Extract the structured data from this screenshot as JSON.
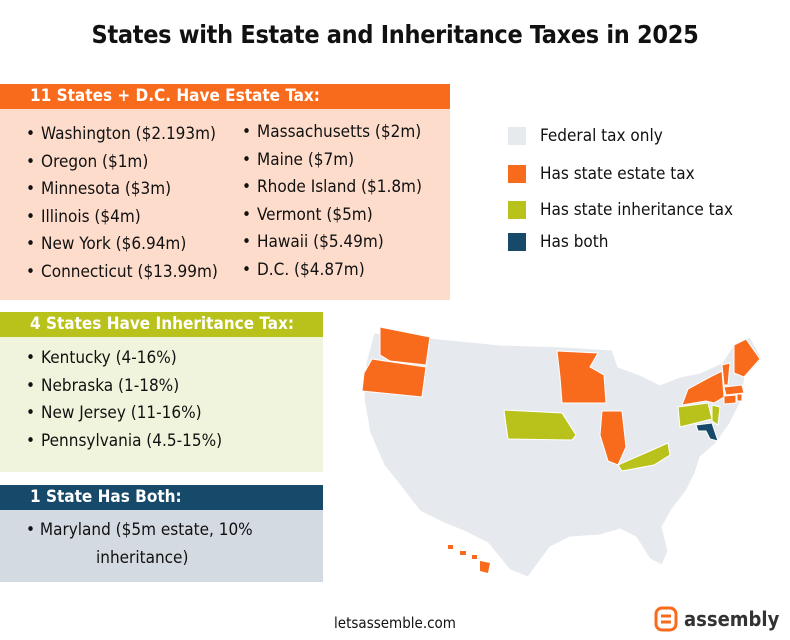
{
  "title": "States with Estate and Inheritance Taxes in 2025",
  "colors": {
    "federal": "#e6e9ee",
    "estate": "#f96b1c",
    "inheritance": "#b9c11b",
    "both": "#174a6a",
    "estate_panel": "#fddccc",
    "inheritance_panel": "#f1f4dc",
    "both_panel": "#d4dae2"
  },
  "estate": {
    "header": "11 States + D.C. Have Estate Tax:",
    "col1": [
      "Washington ($2.193m)",
      "Oregon ($1m)",
      "Minnesota ($3m)",
      "Illinois ($4m)",
      "New York ($6.94m)",
      "Connecticut ($13.99m)"
    ],
    "col2": [
      "Massachusetts ($2m)",
      "Maine ($7m)",
      "Rhode Island ($1.8m)",
      "Vermont ($5m)",
      "Hawaii ($5.49m)",
      "D.C. ($4.87m)"
    ]
  },
  "inheritance": {
    "header": "4 States Have Inheritance Tax:",
    "items": [
      "Kentucky (4-16%)",
      "Nebraska (1-18%)",
      "New Jersey (11-16%)",
      "Pennsylvania (4.5-15%)"
    ]
  },
  "both": {
    "header": "1 State Has Both:",
    "item_line1": "Maryland ($5m estate, 10%",
    "item_line2": "inheritance)"
  },
  "legend": {
    "federal": "Federal tax only",
    "estate": "Has state estate tax",
    "inheritance": "Has state inheritance tax",
    "both": "Has both"
  },
  "footer": "letsassemble.com",
  "logo": "assembly"
}
